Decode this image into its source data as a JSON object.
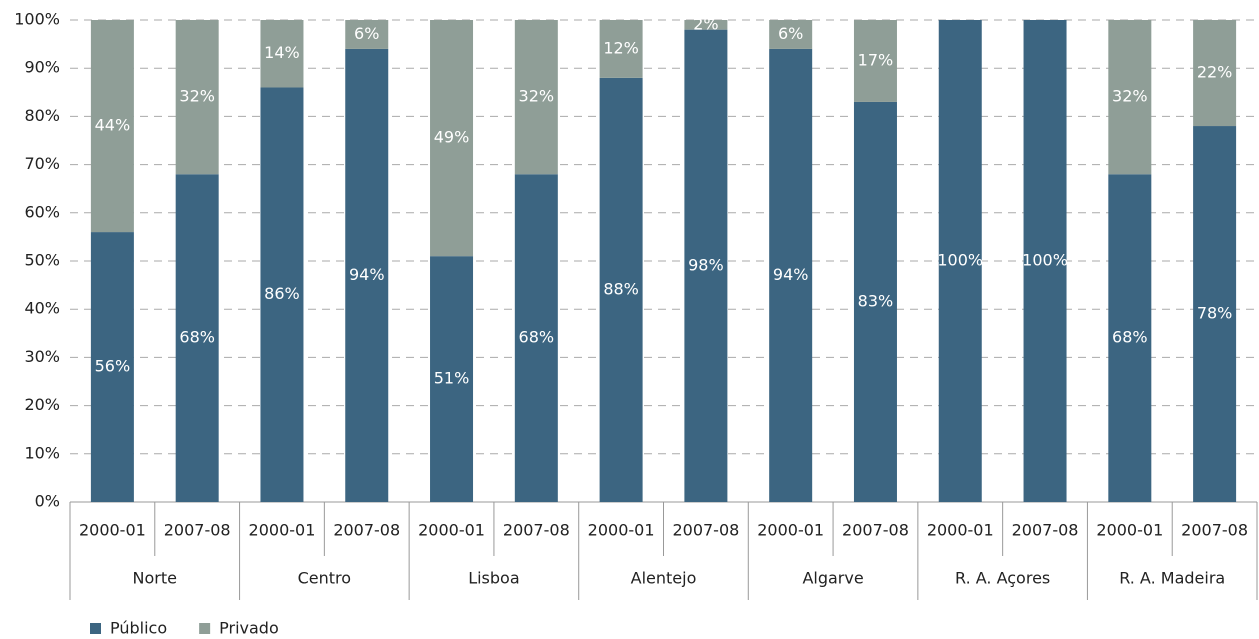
{
  "chart_data": {
    "type": "stacked_bar",
    "categories": [
      "2000-01",
      "2007-08",
      "2000-01",
      "2007-08",
      "2000-01",
      "2007-08",
      "2000-01",
      "2007-08",
      "2000-01",
      "2007-08",
      "2000-01",
      "2007-08",
      "2000-01",
      "2007-08"
    ],
    "groups": [
      "Norte",
      "Centro",
      "Lisboa",
      "Alentejo",
      "Algarve",
      "R. A. Açores",
      "R. A. Madeira"
    ],
    "series": [
      {
        "name": "Público",
        "color": "#3c6581",
        "values": [
          56,
          68,
          86,
          94,
          51,
          68,
          88,
          98,
          94,
          83,
          100,
          100,
          68,
          78
        ],
        "value_labels": [
          "56%",
          "68%",
          "86%",
          "94%",
          "51%",
          "68%",
          "88%",
          "98%",
          "94%",
          "83%",
          "100%",
          "100%",
          "68%",
          "78%"
        ]
      },
      {
        "name": "Privado",
        "color": "#8f9e97",
        "values": [
          44,
          32,
          14,
          6,
          49,
          32,
          12,
          2,
          6,
          17,
          0,
          0,
          32,
          22
        ],
        "value_labels": [
          "44%",
          "32%",
          "14%",
          "6%",
          "49%",
          "32%",
          "12%",
          "2%",
          "6%",
          "17%",
          null,
          null,
          "32%",
          "22%"
        ]
      }
    ],
    "ylim": [
      0,
      100
    ],
    "yticks": [
      {
        "value": 0,
        "label": "0%"
      },
      {
        "value": 10,
        "label": "10%"
      },
      {
        "value": 20,
        "label": "20%"
      },
      {
        "value": 30,
        "label": "30%"
      },
      {
        "value": 40,
        "label": "40%"
      },
      {
        "value": 50,
        "label": "50%"
      },
      {
        "value": 60,
        "label": "60%"
      },
      {
        "value": 70,
        "label": "70%"
      },
      {
        "value": 80,
        "label": "80%"
      },
      {
        "value": 90,
        "label": "90%"
      },
      {
        "value": 100,
        "label": "100%"
      }
    ],
    "grid": true,
    "legend": "bottom-left"
  }
}
